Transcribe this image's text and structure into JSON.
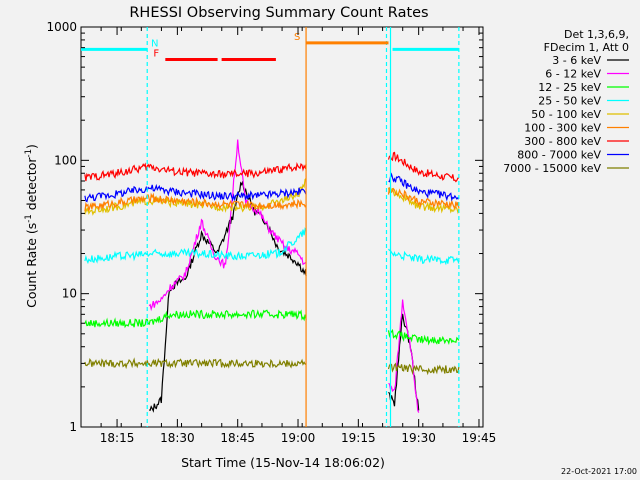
{
  "chart_data": {
    "type": "line",
    "title": "RHESSI Observing Summary Count Rates",
    "xlabel": "Start Time (15-Nov-14 18:06:02)",
    "ylabel_main": "Count Rate (s",
    "ylabel_sup1": "-1",
    "ylabel_mid": " detector",
    "ylabel_sup2": "-1",
    "ylabel_end": ")",
    "y_scale": "log",
    "ylim": [
      1,
      1000
    ],
    "xlim": [
      "18:06:02",
      "19:46:00"
    ],
    "x_ticks": [
      "18:15",
      "18:30",
      "18:45",
      "19:00",
      "19:15",
      "19:30",
      "19:45"
    ],
    "y_ticks": [
      "1",
      "10",
      "100",
      "1000"
    ],
    "legend_header": [
      "Det 1,3,6,9,",
      "FDecim 1, Att 0"
    ],
    "legend_placement": "right",
    "date_stamp": "22-Oct-2021 17:00",
    "gaps": [
      [
        "19:02:00",
        "19:22:30"
      ]
    ],
    "series": [
      {
        "name": "3 - 6 keV",
        "color": "#000000",
        "points": [
          [
            "18:23",
            1.3
          ],
          [
            "18:26",
            1.6
          ],
          [
            "18:28",
            11
          ],
          [
            "18:32",
            13
          ],
          [
            "18:36",
            28
          ],
          [
            "18:40",
            20
          ],
          [
            "18:44",
            40
          ],
          [
            "18:46",
            70
          ],
          [
            "18:49",
            42
          ],
          [
            "18:52",
            35
          ],
          [
            "18:55",
            22
          ],
          [
            "18:58",
            19
          ],
          [
            "19:00",
            17
          ],
          [
            "19:24",
            1.5
          ],
          [
            "19:26",
            7
          ],
          [
            "19:28",
            4
          ],
          [
            "19:30",
            1.3
          ]
        ]
      },
      {
        "name": "6 - 12 keV",
        "color": "#ff00ff",
        "points": [
          [
            "18:23",
            8
          ],
          [
            "18:26",
            9
          ],
          [
            "18:28",
            11
          ],
          [
            "18:32",
            14
          ],
          [
            "18:36",
            35
          ],
          [
            "18:39",
            20
          ],
          [
            "18:42",
            16
          ],
          [
            "18:45",
            140
          ],
          [
            "18:47",
            48
          ],
          [
            "18:50",
            42
          ],
          [
            "18:53",
            30
          ],
          [
            "18:57",
            22
          ],
          [
            "19:00",
            20
          ],
          [
            "19:24",
            1.8
          ],
          [
            "19:26",
            9
          ],
          [
            "19:28",
            4
          ],
          [
            "19:30",
            1.2
          ]
        ]
      },
      {
        "name": "12 - 25 keV",
        "color": "#00ff00",
        "points": [
          [
            "18:07",
            6
          ],
          [
            "18:15",
            6
          ],
          [
            "18:23",
            6
          ],
          [
            "18:28",
            7
          ],
          [
            "18:35",
            7
          ],
          [
            "18:45",
            7
          ],
          [
            "18:48",
            7
          ],
          [
            "19:00",
            7
          ],
          [
            "19:24",
            5
          ],
          [
            "19:30",
            4.5
          ],
          [
            "19:40",
            4.5
          ]
        ]
      },
      {
        "name": "25 - 50 keV",
        "color": "#00ffff",
        "points": [
          [
            "18:07",
            18
          ],
          [
            "18:15",
            19
          ],
          [
            "18:25",
            20
          ],
          [
            "18:35",
            20
          ],
          [
            "18:45",
            19
          ],
          [
            "18:55",
            20
          ],
          [
            "19:00",
            26
          ],
          [
            "19:02",
            30
          ],
          [
            "19:24",
            20
          ],
          [
            "19:30",
            18
          ],
          [
            "19:40",
            18
          ]
        ]
      },
      {
        "name": "50 - 100 keV",
        "color": "#e0c000",
        "points": [
          [
            "18:07",
            41
          ],
          [
            "18:15",
            45
          ],
          [
            "18:23",
            50
          ],
          [
            "18:30",
            48
          ],
          [
            "18:40",
            45
          ],
          [
            "18:50",
            44
          ],
          [
            "19:00",
            55
          ],
          [
            "19:02",
            70
          ],
          [
            "19:24",
            58
          ],
          [
            "19:30",
            45
          ],
          [
            "19:40",
            43
          ]
        ]
      },
      {
        "name": "100 - 300 keV",
        "color": "#ff8000",
        "points": [
          [
            "18:07",
            44
          ],
          [
            "18:15",
            48
          ],
          [
            "18:23",
            52
          ],
          [
            "18:30",
            50
          ],
          [
            "18:40",
            47
          ],
          [
            "18:50",
            46
          ],
          [
            "19:00",
            47
          ],
          [
            "19:24",
            60
          ],
          [
            "19:30",
            49
          ],
          [
            "19:40",
            46
          ]
        ]
      },
      {
        "name": "300 - 800 keV",
        "color": "#ff0000",
        "points": [
          [
            "18:07",
            74
          ],
          [
            "18:15",
            80
          ],
          [
            "18:23",
            90
          ],
          [
            "18:30",
            82
          ],
          [
            "18:40",
            78
          ],
          [
            "18:50",
            80
          ],
          [
            "19:00",
            90
          ],
          [
            "19:02",
            92
          ],
          [
            "19:24",
            108
          ],
          [
            "19:30",
            82
          ],
          [
            "19:40",
            72
          ]
        ]
      },
      {
        "name": "800 - 7000 keV",
        "color": "#0000ff",
        "points": [
          [
            "18:07",
            52
          ],
          [
            "18:15",
            56
          ],
          [
            "18:23",
            62
          ],
          [
            "18:30",
            58
          ],
          [
            "18:40",
            54
          ],
          [
            "18:50",
            54
          ],
          [
            "19:00",
            58
          ],
          [
            "19:24",
            74
          ],
          [
            "19:30",
            58
          ],
          [
            "19:40",
            53
          ]
        ]
      },
      {
        "name": "7000 - 15000 keV",
        "color": "#808000",
        "points": [
          [
            "18:07",
            3
          ],
          [
            "18:15",
            3
          ],
          [
            "18:23",
            3
          ],
          [
            "18:30",
            3
          ],
          [
            "18:40",
            3
          ],
          [
            "18:50",
            3
          ],
          [
            "19:00",
            3
          ],
          [
            "19:24",
            2.8
          ],
          [
            "19:30",
            2.7
          ],
          [
            "19:40",
            2.7
          ]
        ]
      }
    ],
    "flag_bars": [
      {
        "label": "N",
        "color": "#00ffff",
        "value": 680,
        "segments": [
          [
            "18:06:02",
            "18:22:30"
          ],
          [
            "19:23:30",
            "19:40:00"
          ]
        ]
      },
      {
        "label": "F",
        "color": "#ff0000",
        "value": 570,
        "segments": [
          [
            "18:27:00",
            "18:40:00"
          ],
          [
            "18:41:00",
            "18:54:30"
          ]
        ]
      },
      {
        "label": "S",
        "color": "#ff8000",
        "value": 760,
        "segments": [
          [
            "19:02:00",
            "19:22:30"
          ]
        ]
      }
    ],
    "vlines": [
      {
        "time": "18:22:30",
        "color": "#00ffff",
        "style": "dashed"
      },
      {
        "time": "19:02:00",
        "color": "#ff8000",
        "style": "solid"
      },
      {
        "time": "19:22:00",
        "color": "#00ffff",
        "style": "dashed"
      },
      {
        "time": "19:23:00",
        "color": "#00ffff",
        "style": "solid"
      },
      {
        "time": "19:40:00",
        "color": "#00ffff",
        "style": "dashed"
      }
    ]
  }
}
